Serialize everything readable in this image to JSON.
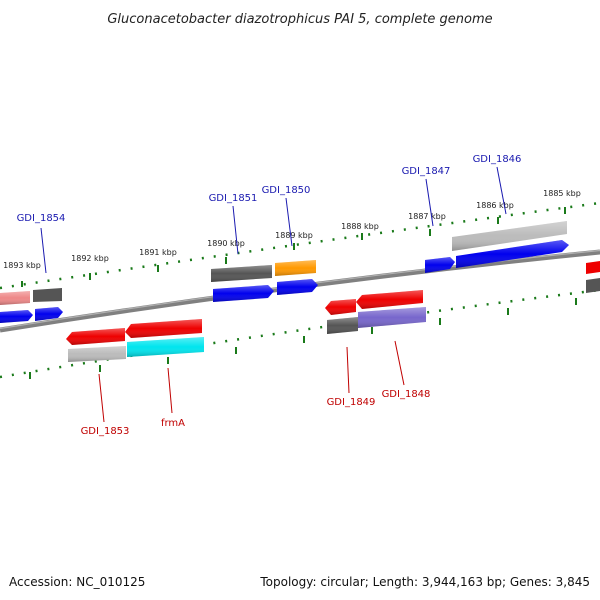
{
  "title": "Gluconacetobacter diazotrophicus PAI 5, complete genome",
  "footer": {
    "accession": "Accession: NC_010125",
    "summary": "Topology: circular; Length: 3,944,163 bp; Genes: 3,845"
  },
  "ruler_ticks": [
    "1893 kbp",
    "1892 kbp",
    "1891 kbp",
    "1890 kbp",
    "1889 kbp",
    "1888 kbp",
    "1887 kbp",
    "1886 kbp",
    "1885 kbp"
  ],
  "gene_labels_top": [
    "GDI_1854",
    "GDI_1851",
    "GDI_1850",
    "GDI_1847",
    "GDI_1846"
  ],
  "gene_labels_bottom": [
    "GDI_1853",
    "frmA",
    "GDI_1849",
    "GDI_1848"
  ],
  "colors": {
    "forward_label": "#1a1ab0",
    "reverse_label": "#c00000",
    "backbone": "#808080",
    "ruler": "#1a7a1a",
    "cds_forward": "#0000ee",
    "cds_reverse": "#ee0000",
    "gene_grey": "#bbbbbb",
    "gene_dark": "#555555",
    "cyan": "#00e5ee",
    "orange": "#ff9900",
    "purple": "#7766cc",
    "pink": "#ee8888"
  }
}
